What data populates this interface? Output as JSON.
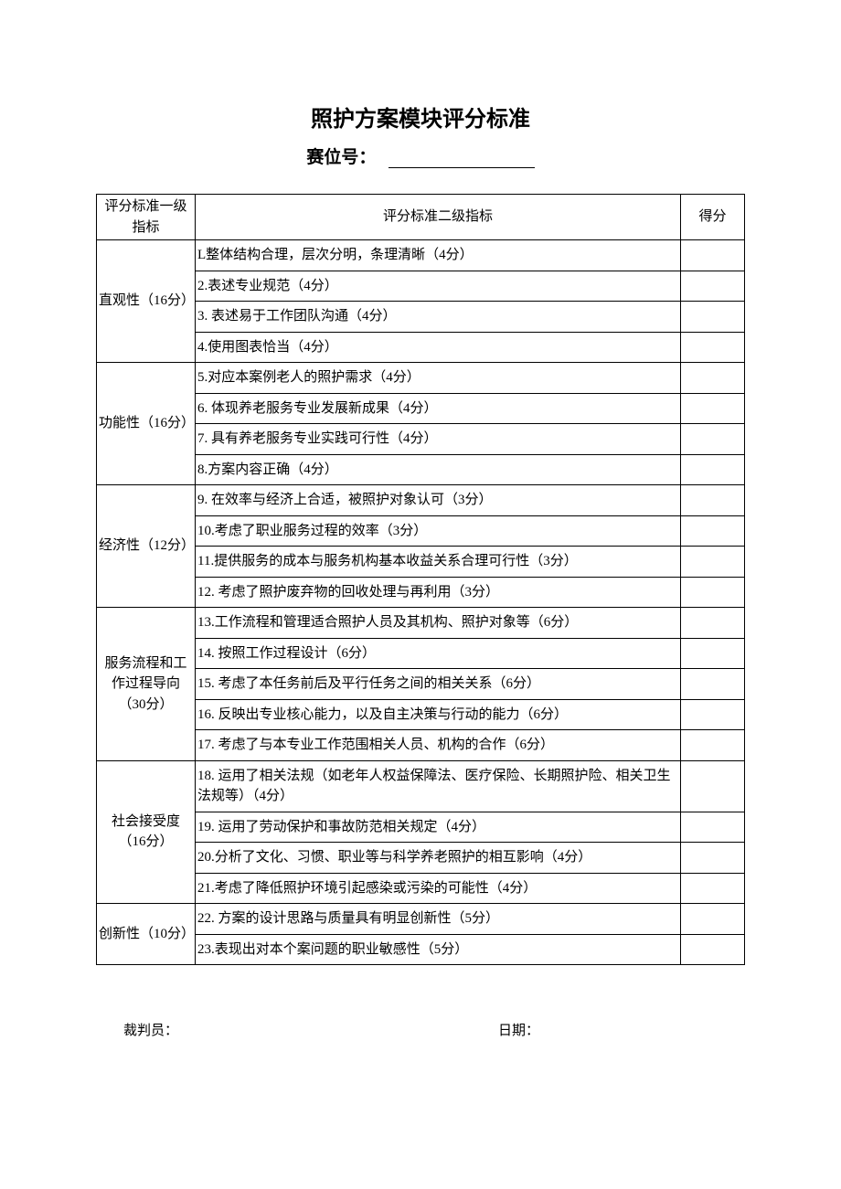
{
  "title": "照护方案模块评分标准",
  "subtitle_label": "赛位号：",
  "headers": {
    "level1": "评分标准一级指标",
    "level2": "评分标准二级指标",
    "score": "得分"
  },
  "sections": [
    {
      "category": "直观性（16分）",
      "items": [
        "L整体结构合理，层次分明，条理清晰（4分）",
        "2.表述专业规范（4分）",
        "3. 表述易于工作团队沟通（4分）",
        "4.使用图表恰当（4分）"
      ]
    },
    {
      "category": "功能性（16分）",
      "items": [
        "5.对应本案例老人的照护需求（4分）",
        "6. 体现养老服务专业发展新成果（4分）",
        "7. 具有养老服务专业实践可行性（4分）",
        "8.方案内容正确（4分）"
      ]
    },
    {
      "category": "经济性（12分）",
      "items": [
        "9. 在效率与经济上合适，被照护对象认可（3分）",
        "10.考虑了职业服务过程的效率（3分）",
        "11.提供服务的成本与服务机构基本收益关系合理可行性（3分）",
        "12. 考虑了照护废弃物的回收处理与再利用（3分）"
      ]
    },
    {
      "category": "服务流程和工作过程导向（30分）",
      "items": [
        "13.工作流程和管理适合照护人员及其机构、照护对象等（6分）",
        "14. 按照工作过程设计（6分）",
        "15. 考虑了本任务前后及平行任务之间的相关关系（6分）",
        "16. 反映出专业核心能力，以及自主决策与行动的能力（6分）",
        "17. 考虑了与本专业工作范围相关人员、机构的合作（6分）"
      ]
    },
    {
      "category": "社会接受度（16分）",
      "items": [
        "18. 运用了相关法规（如老年人权益保障法、医疗保险、长期照护险、相关卫生法规等）（4分）",
        "19. 运用了劳动保护和事故防范相关规定（4分）",
        "20.分析了文化、习惯、职业等与科学养老照护的相互影响（4分）",
        "21.考虑了降低照护环境引起感染或污染的可能性（4分）"
      ]
    },
    {
      "category": "创新性（10分）",
      "items": [
        "22. 方案的设计思路与质量具有明显创新性（5分）",
        "23.表现出对本个案问题的职业敏感性（5分）"
      ]
    }
  ],
  "footer": {
    "judge_label": "裁判员：",
    "date_label": "日期："
  },
  "style": {
    "font_family": "SimSun",
    "title_fontsize": 24,
    "body_fontsize": 15,
    "text_color": "#000000",
    "background_color": "#ffffff",
    "border_color": "#000000",
    "col_widths": {
      "level1": 108,
      "score": 70
    }
  }
}
